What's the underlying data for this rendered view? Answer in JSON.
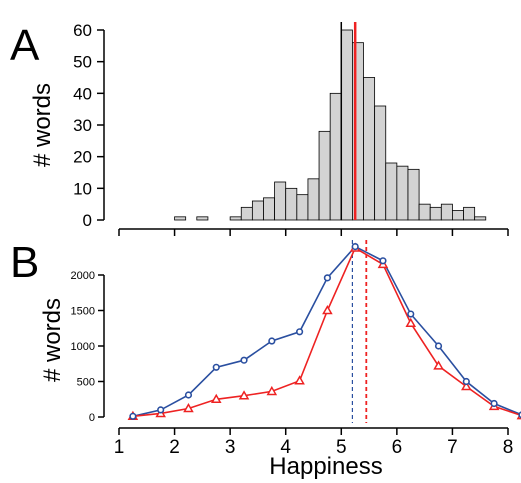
{
  "chart_data": [
    {
      "type": "bar",
      "panel_label": "A",
      "ylabel": "# words",
      "xlim": [
        1,
        8
      ],
      "ylim": [
        0,
        60
      ],
      "yticks": [
        0,
        10,
        20,
        30,
        40,
        50,
        60
      ],
      "bin_width": 0.2,
      "bin_starts": [
        2.0,
        2.2,
        2.4,
        2.6,
        2.8,
        3.0,
        3.2,
        3.4,
        3.6,
        3.8,
        4.0,
        4.2,
        4.4,
        4.6,
        4.8,
        5.0,
        5.2,
        5.4,
        5.6,
        5.8,
        6.0,
        6.2,
        6.4,
        6.6,
        6.8,
        7.0,
        7.2,
        7.4
      ],
      "values": [
        1,
        0,
        1,
        0,
        0,
        1,
        4,
        6,
        7,
        12,
        10,
        8,
        13,
        28,
        40,
        60,
        56,
        45,
        36,
        18,
        17,
        16,
        5,
        4,
        5,
        3,
        4,
        1
      ],
      "fill_color": "#d3d3d3",
      "vlines": [
        {
          "x": 5.0,
          "color": "#000000"
        },
        {
          "x": 5.25,
          "color": "#ee2222"
        }
      ],
      "grid": false
    },
    {
      "type": "line",
      "panel_label": "B",
      "xlabel": "Happiness",
      "ylabel": "# words",
      "xlim": [
        1,
        8
      ],
      "ylim": [
        0,
        2000
      ],
      "xticks": [
        1,
        2,
        3,
        4,
        5,
        6,
        7,
        8
      ],
      "yticks": [
        0,
        500,
        1000,
        1500,
        2000
      ],
      "x": [
        1.25,
        1.75,
        2.25,
        2.75,
        3.25,
        3.75,
        4.25,
        4.75,
        5.25,
        5.75,
        6.25,
        6.75,
        7.25,
        7.75,
        8.25
      ],
      "series": [
        {
          "values": [
            10,
            100,
            310,
            700,
            800,
            1070,
            1200,
            1960,
            2400,
            2200,
            1450,
            1000,
            500,
            190,
            30
          ],
          "color": "#2a4fa0",
          "marker": "circle"
        },
        {
          "values": [
            10,
            50,
            120,
            250,
            300,
            360,
            510,
            1500,
            2380,
            2150,
            1320,
            720,
            430,
            150,
            20
          ],
          "color": "#ee2222",
          "marker": "triangle"
        }
      ],
      "vlines": [
        {
          "x": 5.2,
          "color": "#2a4fa0",
          "style": "dashed"
        },
        {
          "x": 5.45,
          "color": "#ee2222",
          "style": "dashed"
        }
      ],
      "grid": false
    }
  ]
}
